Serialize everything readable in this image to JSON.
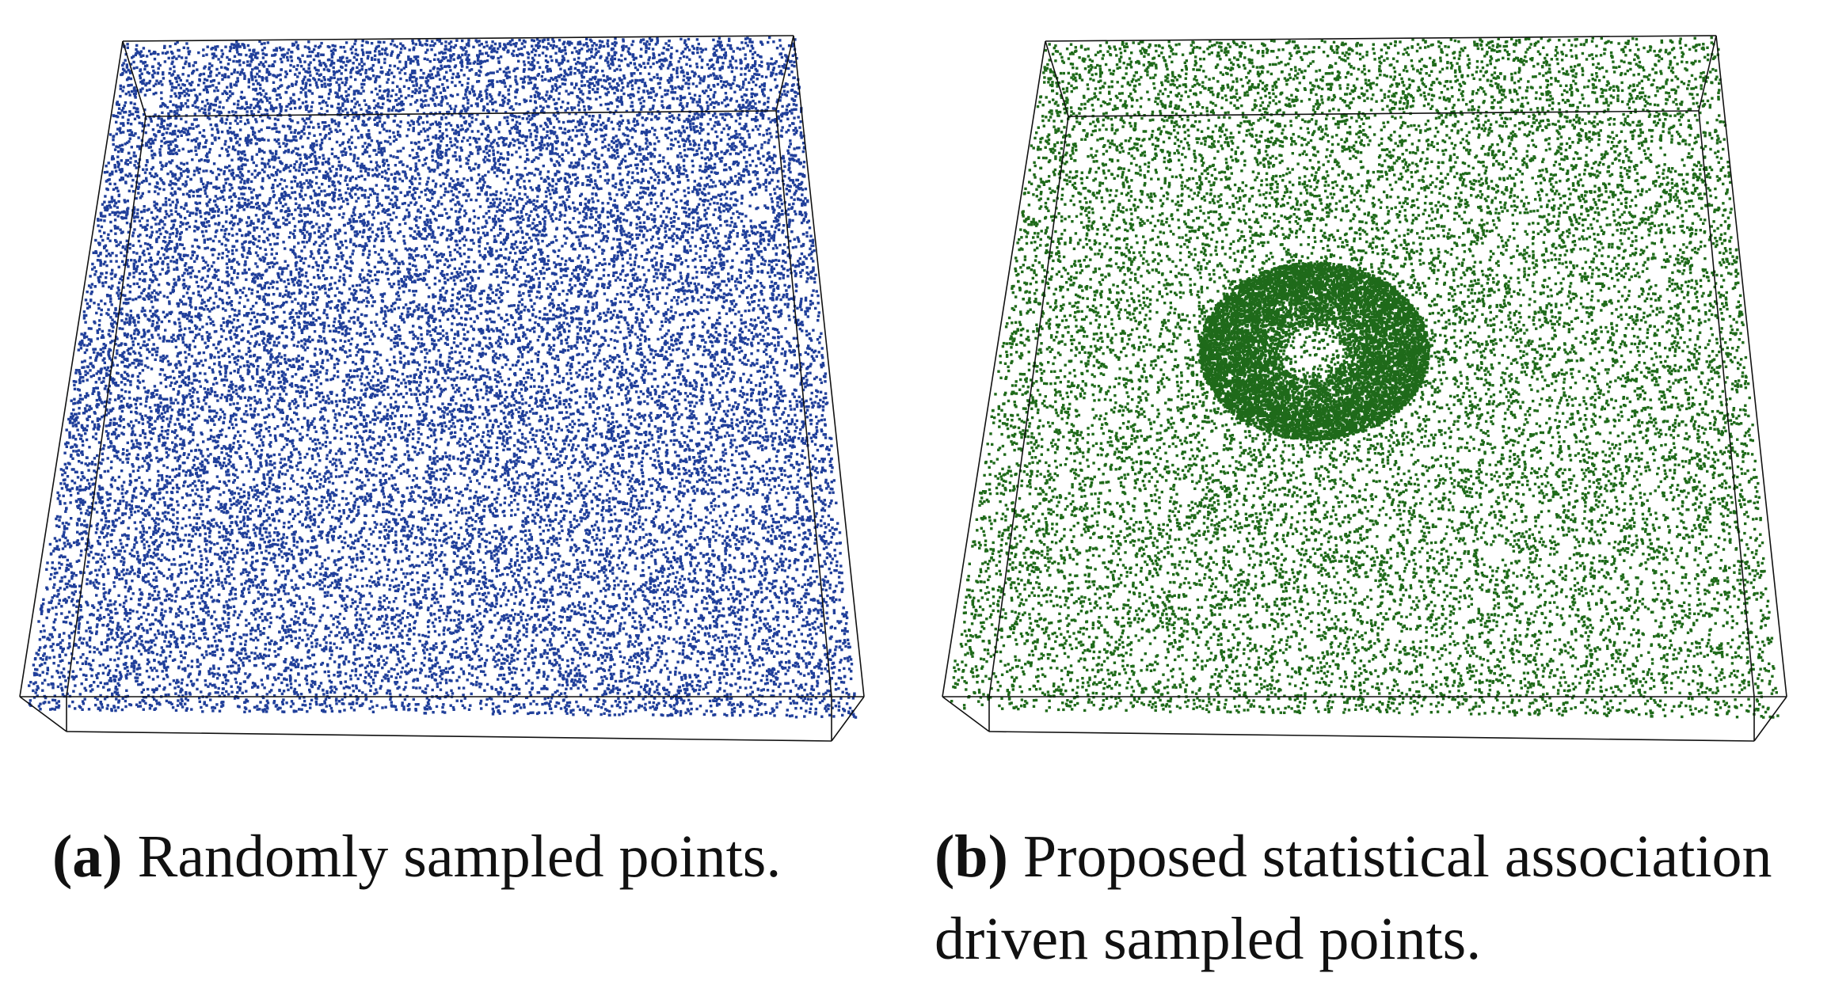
{
  "panels": [
    {
      "label": "(a)",
      "caption_lines": [
        "Randomly sampled points."
      ]
    },
    {
      "label": "(b)",
      "caption_lines": [
        "Proposed statistical association",
        "driven sampled points."
      ]
    }
  ]
}
